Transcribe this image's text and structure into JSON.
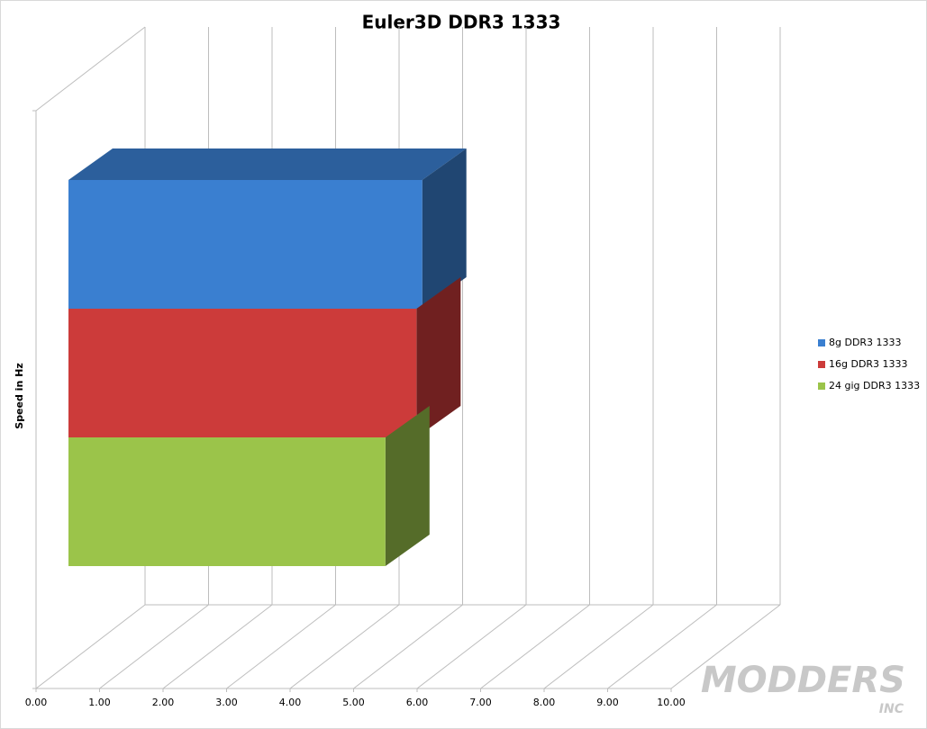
{
  "chart_data": {
    "type": "bar3d",
    "orientation": "horizontal",
    "title": "Euler3D DDR3 1333",
    "y_label": "Speed in Hz",
    "categories": [
      null
    ],
    "series": [
      {
        "name": "8g DDR3 1333",
        "color": "#3a7fd0",
        "values": [
          5.57
        ]
      },
      {
        "name": "16g DDR3 1333",
        "color": "#cc3b3a",
        "values": [
          5.48
        ]
      },
      {
        "name": "24 gig DDR3 1333",
        "color": "#9bc44a",
        "values": [
          4.99
        ]
      }
    ],
    "xlim": [
      0,
      10
    ],
    "xticks": [
      {
        "value": 0,
        "label": "0.00"
      },
      {
        "value": 1,
        "label": "1.00"
      },
      {
        "value": 2,
        "label": "2.00"
      },
      {
        "value": 3,
        "label": "3.00"
      },
      {
        "value": 4,
        "label": "4.00"
      },
      {
        "value": 5,
        "label": "5.00"
      },
      {
        "value": 6,
        "label": "6.00"
      },
      {
        "value": 7,
        "label": "7.00"
      },
      {
        "value": 8,
        "label": "8.00"
      },
      {
        "value": 9,
        "label": "9.00"
      },
      {
        "value": 10,
        "label": "10.00"
      }
    ],
    "grid": true,
    "legend": "right"
  },
  "watermark": {
    "text": "MODDERS",
    "sub": "INC"
  }
}
